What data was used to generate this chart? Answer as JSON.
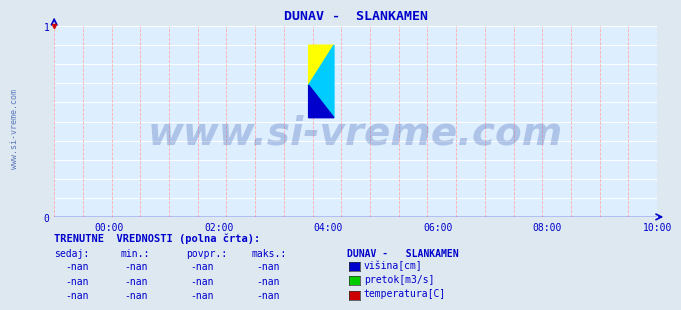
{
  "title": "DUNAV -  SLANKAMEN",
  "title_color": "#0000cc",
  "title_fontsize": 9.5,
  "bg_color": "#dde8f0",
  "plot_bg_color": "#ddeeff",
  "xlim": [
    0,
    1
  ],
  "ylim": [
    0,
    1
  ],
  "xtick_labels": [
    "00:00",
    "02:00",
    "04:00",
    "06:00",
    "08:00",
    "10:00"
  ],
  "xtick_positions": [
    0.0909,
    0.2727,
    0.4545,
    0.6364,
    0.8182,
    1.0
  ],
  "ytick_labels": [
    "0",
    "1"
  ],
  "ytick_positions": [
    0.0,
    1.0
  ],
  "axis_color": "#0000cc",
  "tick_color": "#0000cc",
  "tick_fontsize": 7,
  "watermark": "www.si-vreme.com",
  "watermark_color": "#3355aa",
  "watermark_alpha": 0.28,
  "watermark_fontsize": 28,
  "side_label": "www.si-vreme.com",
  "side_label_color": "#3355aa",
  "side_label_fontsize": 6,
  "legend_title": "DUNAV -   SLANKAMEN",
  "legend_title_color": "#0000cc",
  "legend_items": [
    {
      "label": "višina[cm]",
      "color": "#0000cc"
    },
    {
      "label": "pretok[m3/s]",
      "color": "#00cc00"
    },
    {
      "label": "temperatura[C]",
      "color": "#cc0000"
    }
  ],
  "table_header": [
    "sedaj:",
    "min.:",
    "povpr.:",
    "maks.:"
  ],
  "table_values": "-nan",
  "table_label": "TRENUTNE  VREDNOSTI (polna črta):",
  "table_color": "#0000cc",
  "red_dashed_color": "#ffaaaa",
  "white_grid_color": "#ffffff",
  "num_vertical_lines": 22,
  "num_horizontal_lines": 11
}
